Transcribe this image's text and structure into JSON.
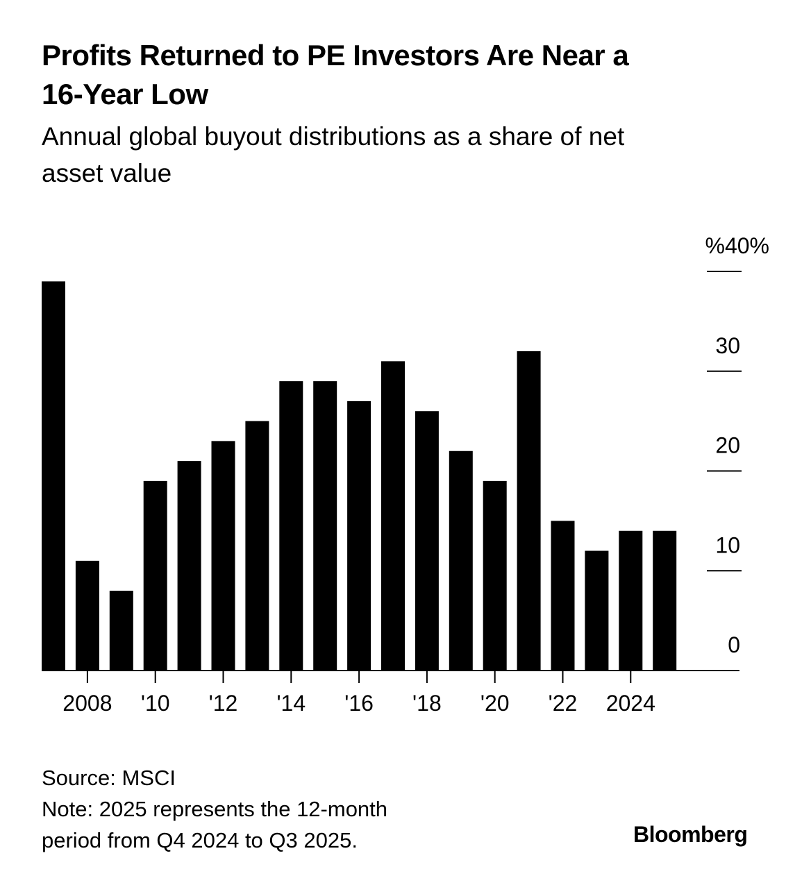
{
  "header": {
    "title": "Profits Returned to PE Investors Are Near a 16-Year Low",
    "subtitle": "Annual global buyout distributions as a share of net asset value"
  },
  "footer": {
    "source": "Source: MSCI",
    "note_line1": "Note: 2025 represents the 12-month",
    "note_line2": "period from Q4 2024 to Q3 2025.",
    "brand": "Bloomberg"
  },
  "colors": {
    "bar": "#000000",
    "background": "#ffffff",
    "text": "#000000"
  },
  "chart_data": {
    "type": "bar",
    "title": "Profits Returned to PE Investors Are Near a 16-Year Low",
    "subtitle": "Annual global buyout distributions as a share of net asset value",
    "xlabel": "",
    "ylabel": "%",
    "categories": [
      "2007",
      "2008",
      "2009",
      "2010",
      "2011",
      "2012",
      "2013",
      "2014",
      "2015",
      "2016",
      "2017",
      "2018",
      "2019",
      "2020",
      "2021",
      "2022",
      "2023",
      "2024",
      "2025"
    ],
    "values": [
      39,
      11,
      8,
      19,
      21,
      23,
      25,
      29,
      29,
      27,
      31,
      26,
      22,
      19,
      32,
      15,
      12,
      14,
      14
    ],
    "ylim": [
      0,
      40
    ],
    "y_ticks": [
      {
        "value": 0,
        "label": "0"
      },
      {
        "value": 10,
        "label": "10"
      },
      {
        "value": 20,
        "label": "20"
      },
      {
        "value": 30,
        "label": "30"
      },
      {
        "value": 40,
        "label": "%40%"
      }
    ],
    "x_ticks": [
      {
        "year": "2008",
        "label": "2008"
      },
      {
        "year": "2010",
        "label": "'10"
      },
      {
        "year": "2012",
        "label": "'12"
      },
      {
        "year": "2014",
        "label": "'14"
      },
      {
        "year": "2016",
        "label": "'16"
      },
      {
        "year": "2018",
        "label": "'18"
      },
      {
        "year": "2020",
        "label": "'20"
      },
      {
        "year": "2022",
        "label": "'22"
      },
      {
        "year": "2024",
        "label": "2024"
      }
    ],
    "y_axis_side": "right",
    "grid": false,
    "legend": "none",
    "source": "MSCI"
  }
}
